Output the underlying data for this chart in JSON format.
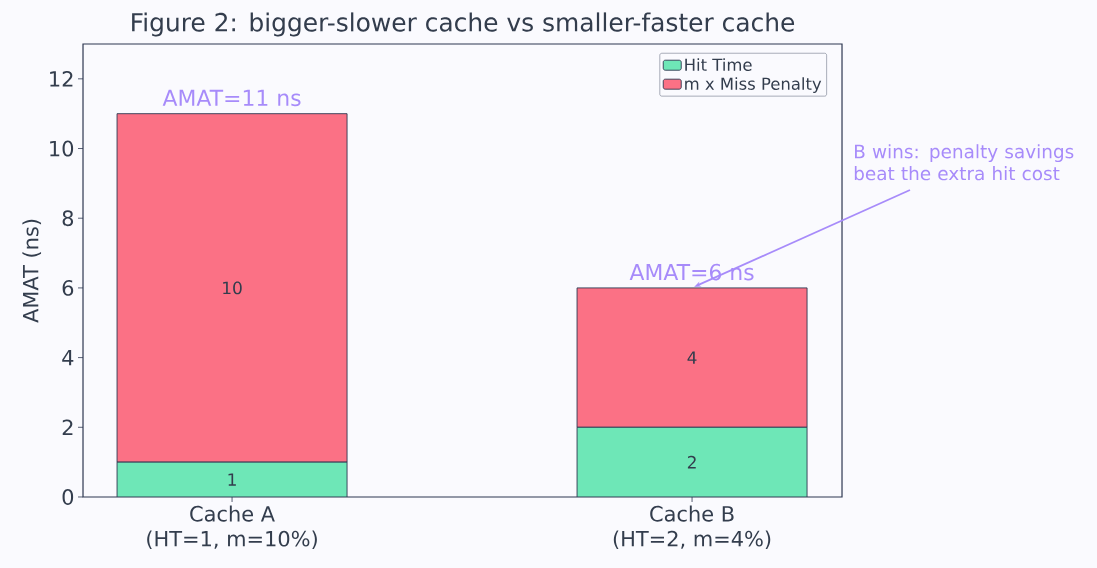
{
  "chart_data": {
    "type": "bar",
    "stacked": true,
    "title": "Figure 2: bigger-slower cache vs smaller-faster cache",
    "ylabel": "AMAT (ns)",
    "categories": [
      "Cache A\n(HT=1, m=10%)",
      "Cache B\n(HT=2, m=4%)"
    ],
    "series": [
      {
        "name": "Hit Time",
        "color": "#6ee7b7",
        "values": [
          1,
          2
        ]
      },
      {
        "name": "m x Miss Penalty",
        "color": "#fb7185",
        "values": [
          10,
          4
        ]
      }
    ],
    "ylim": [
      0,
      13
    ],
    "yticks": [
      0,
      2,
      4,
      6,
      8,
      10,
      12
    ],
    "data_labels": true,
    "totals": [
      "AMAT=11 ns",
      "AMAT=6 ns"
    ],
    "annotations": [
      {
        "text": "B wins: penalty savings beat the extra hit cost",
        "x": "Cache B\n(HT=2, m=4%)",
        "y": 6
      }
    ],
    "legend": "top right",
    "grid": false
  }
}
